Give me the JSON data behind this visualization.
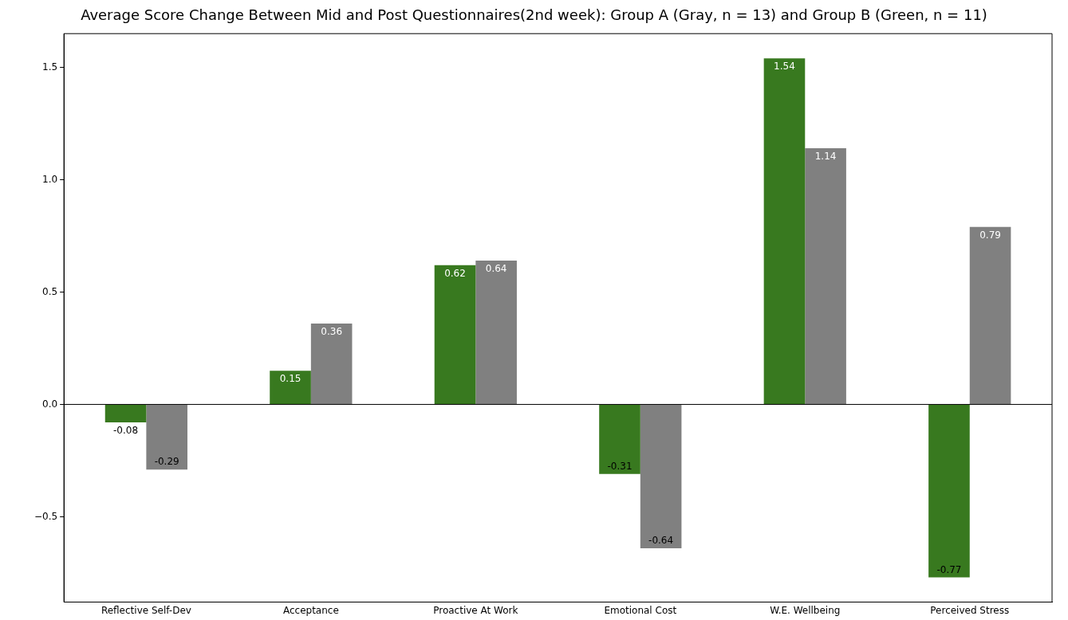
{
  "chart_data": {
    "type": "bar",
    "title": "Average Score Change Between Mid and Post Questionnaires(2nd week): Group A (Gray, n = 13) and Group B (Green, n = 11)",
    "categories": [
      "Reflective Self-Dev",
      "Acceptance",
      "Proactive At Work",
      "Emotional Cost",
      "W.E. Wellbeing",
      "Perceived Stress"
    ],
    "series": [
      {
        "color": "#38791f",
        "values": [
          -0.08,
          0.15,
          0.62,
          -0.31,
          1.54,
          -0.77
        ]
      },
      {
        "color": "#808080",
        "values": [
          -0.29,
          0.36,
          0.64,
          -0.64,
          1.14,
          0.79
        ]
      }
    ],
    "ylim": [
      -0.88,
      1.65
    ],
    "yticks": [
      {
        "value": -0.5,
        "label": "−0.5"
      },
      {
        "value": 0,
        "label": "0.0"
      },
      {
        "value": 0.5,
        "label": "0.5"
      },
      {
        "value": 1,
        "label": "1.0"
      },
      {
        "value": 1.5,
        "label": "1.5"
      }
    ],
    "ref_lines": [
      {
        "axis": "y",
        "value": 0,
        "color": "#000000"
      }
    ],
    "data_labels": true,
    "grid": false,
    "legend": false
  }
}
